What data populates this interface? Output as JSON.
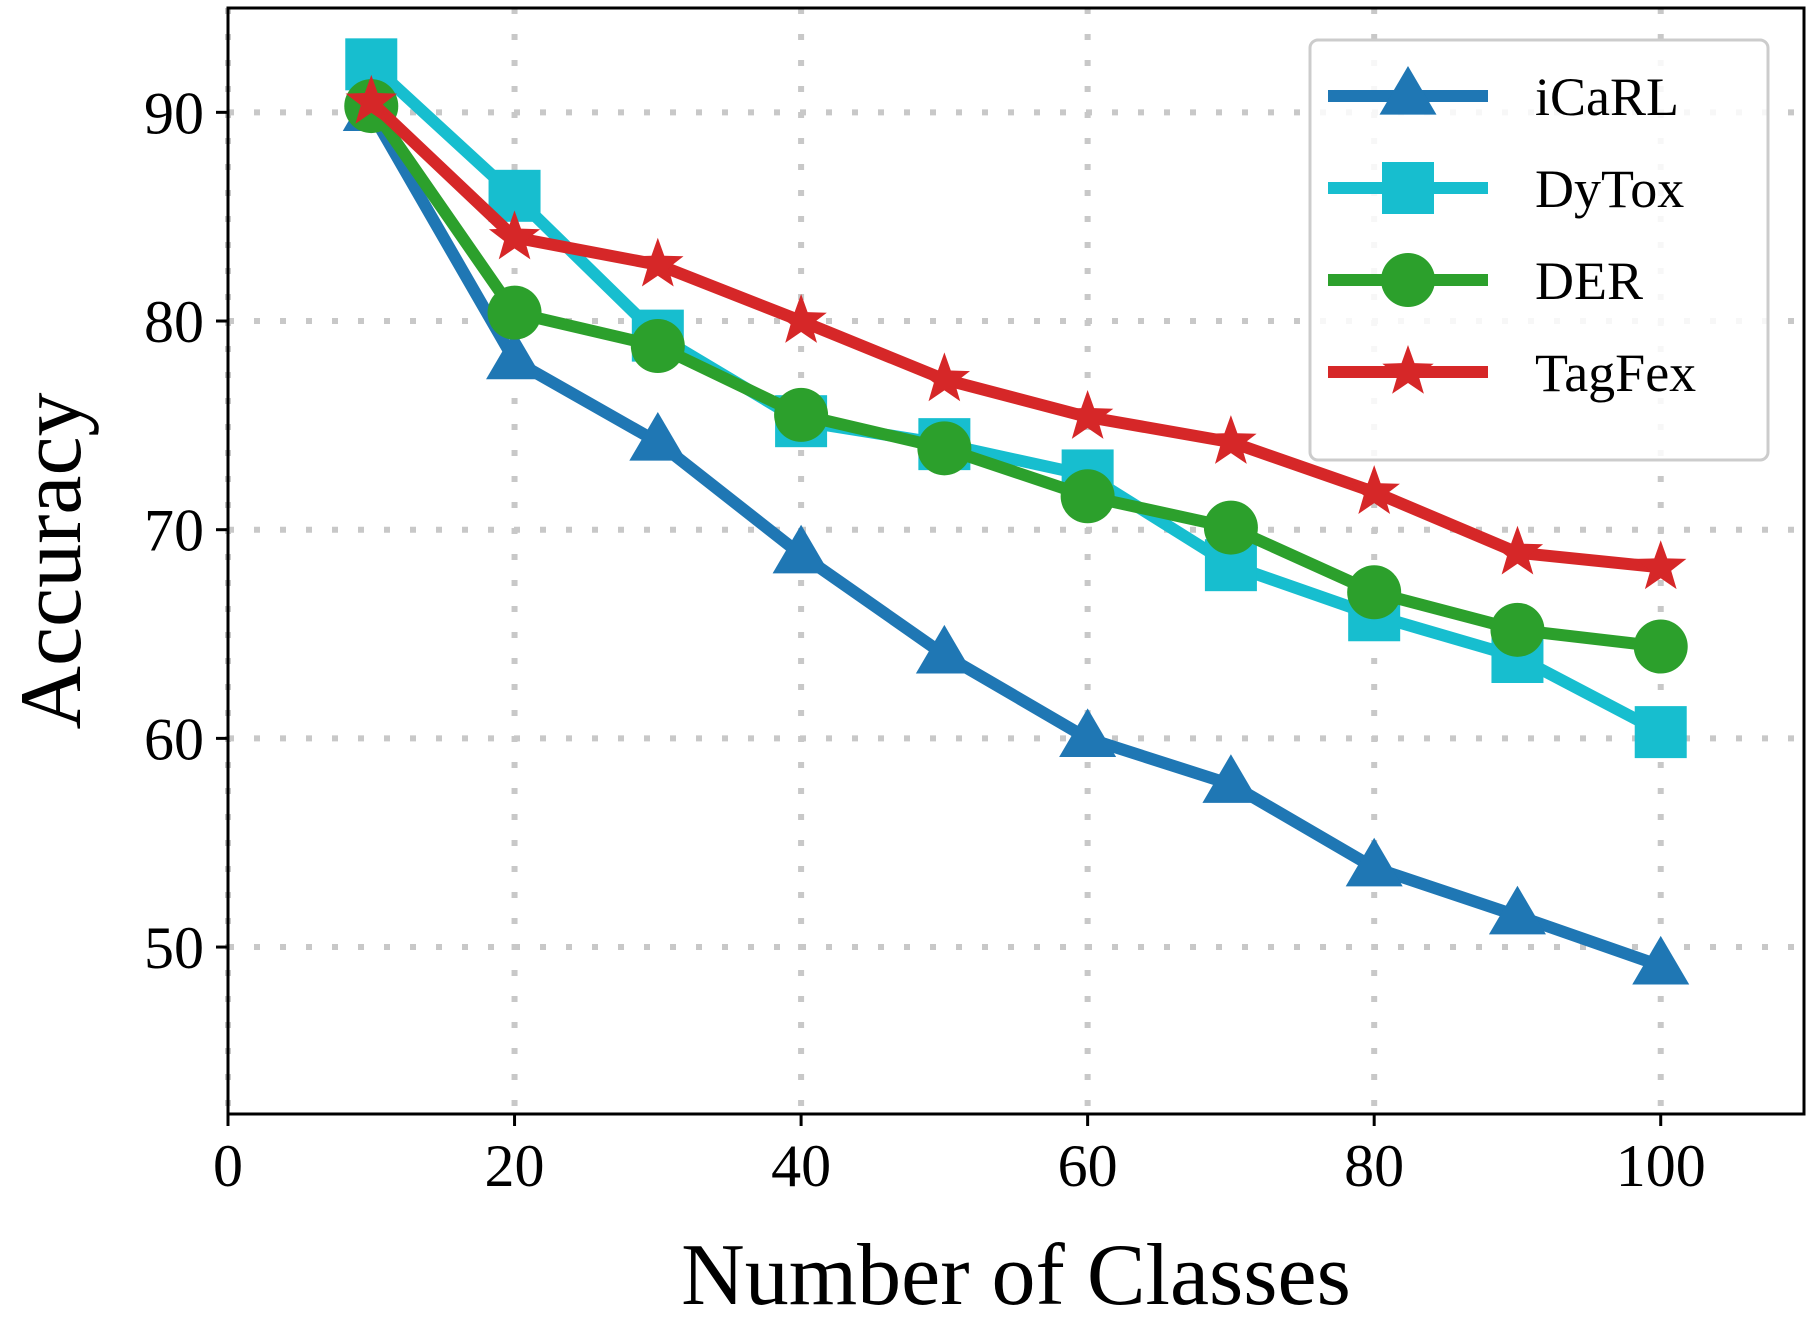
{
  "chart_data": {
    "type": "line",
    "title": "",
    "xlabel": "Number of Classes",
    "ylabel": "Accuracy",
    "xlim": [
      0,
      110
    ],
    "ylim": [
      42,
      95
    ],
    "xticks": [
      0,
      20,
      40,
      60,
      80,
      100
    ],
    "yticks": [
      50,
      60,
      70,
      80,
      90
    ],
    "grid": true,
    "legend_position": "top-right",
    "x": [
      10,
      20,
      30,
      40,
      50,
      60,
      70,
      80,
      90,
      100
    ],
    "series": [
      {
        "name": "iCaRL",
        "color": "#1f77b4",
        "marker": "triangle",
        "values": [
          90.0,
          78.1,
          74.2,
          68.8,
          64.0,
          60.0,
          57.8,
          53.8,
          51.5,
          49.1
        ]
      },
      {
        "name": "DyTox",
        "color": "#17becf",
        "marker": "square",
        "values": [
          92.3,
          86.0,
          79.3,
          75.2,
          74.1,
          72.6,
          68.3,
          65.9,
          63.9,
          60.3
        ]
      },
      {
        "name": "DER",
        "color": "#2ca02c",
        "marker": "circle",
        "values": [
          90.3,
          80.4,
          78.8,
          75.5,
          73.9,
          71.6,
          70.1,
          67.0,
          65.2,
          64.4
        ]
      },
      {
        "name": "TagFex",
        "color": "#d62728",
        "marker": "star",
        "values": [
          90.5,
          84.0,
          82.7,
          80.0,
          77.2,
          75.4,
          74.2,
          71.8,
          68.9,
          68.2
        ]
      }
    ]
  }
}
